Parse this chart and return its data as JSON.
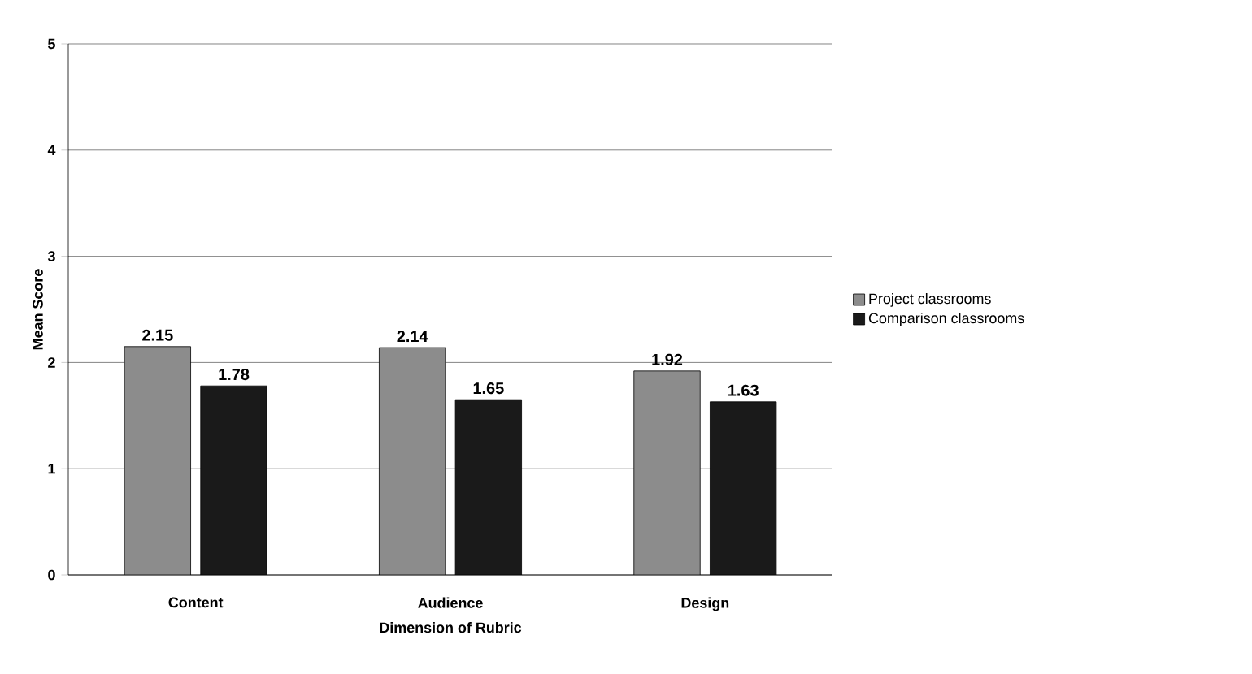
{
  "chart_data": {
    "type": "bar",
    "xlabel": "Dimension of Rubric",
    "ylabel": "Mean Score",
    "categories": [
      "Content",
      "Audience",
      "Design"
    ],
    "series": [
      {
        "name": "Project classrooms",
        "color": "#8c8c8c",
        "values": [
          2.15,
          2.14,
          1.92
        ]
      },
      {
        "name": "Comparison classrooms",
        "color": "#1a1a1a",
        "values": [
          1.78,
          1.65,
          1.63
        ]
      }
    ],
    "ylim": [
      0,
      5
    ],
    "yticks": [
      0,
      1,
      2,
      3,
      4,
      5
    ],
    "grid": "y",
    "legend": "right",
    "data_labels": true
  }
}
